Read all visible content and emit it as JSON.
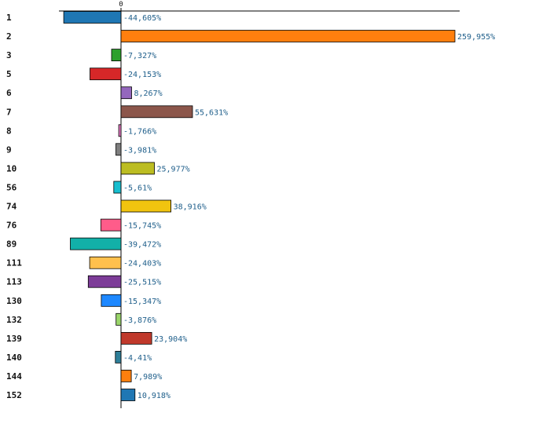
{
  "chart_data": {
    "type": "bar",
    "orientation": "horizontal",
    "title": "",
    "xlabel": "",
    "ylabel": "",
    "x_ticks": [
      "0"
    ],
    "grid": false,
    "legend": "none",
    "xlim": [
      -50,
      282
    ],
    "categories": [
      "1",
      "2",
      "3",
      "5",
      "6",
      "7",
      "8",
      "9",
      "10",
      "56",
      "74",
      "76",
      "89",
      "111",
      "113",
      "130",
      "132",
      "139",
      "140",
      "144",
      "152"
    ],
    "values": [
      -44.605,
      259.955,
      -7.327,
      -24.153,
      8.267,
      55.631,
      -1.766,
      -3.981,
      25.977,
      -5.61,
      38.916,
      -15.745,
      -39.472,
      -24.403,
      -25.515,
      -15.347,
      -3.876,
      23.904,
      -4.41,
      7.989,
      10.918
    ],
    "value_labels": [
      "-44,605%",
      "259,955%",
      "-7,327%",
      "-24,153%",
      "8,267%",
      "55,631%",
      "-1,766%",
      "-3,981%",
      "25,977%",
      "-5,61%",
      "38,916%",
      "-15,745%",
      "-39,472%",
      "-24,403%",
      "-25,515%",
      "-15,347%",
      "-3,876%",
      "23,904%",
      "-4,41%",
      "7,989%",
      "10,918%"
    ],
    "colors": [
      "#1f77b4",
      "#ff7f0e",
      "#2ca02c",
      "#d62728",
      "#9467bd",
      "#8c564b",
      "#e377c2",
      "#7f7f7f",
      "#bcbd22",
      "#17becf",
      "#f1c40f",
      "#ff5c8a",
      "#12b0a8",
      "#ffc04d",
      "#7d3c98",
      "#1e88ff",
      "#9ad56a",
      "#c0392b",
      "#2e7f99",
      "#ff7f0e",
      "#1f77b4"
    ]
  }
}
